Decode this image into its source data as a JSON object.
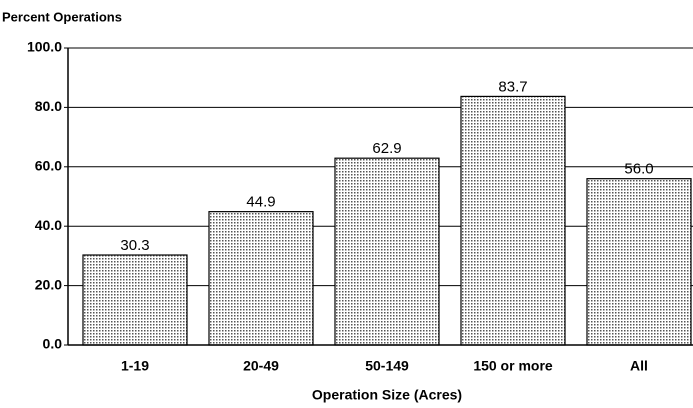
{
  "chart_data": {
    "type": "bar",
    "y_label": "Percent Operations",
    "x_label": "Operation Size (Acres)",
    "categories": [
      "1-19",
      "20-49",
      "50-149",
      "150 or more",
      "All"
    ],
    "values": [
      30.3,
      44.9,
      62.9,
      83.7,
      56.0
    ],
    "value_labels": [
      "30.3",
      "44.9",
      "62.9",
      "83.7",
      "56.0"
    ],
    "color": "#c8c8c8",
    "ylim": [
      0,
      100
    ],
    "yticks": [
      {
        "value": 0,
        "label": "0.0"
      },
      {
        "value": 20,
        "label": "20.0"
      },
      {
        "value": 40,
        "label": "40.0"
      },
      {
        "value": 60,
        "label": "60.0"
      },
      {
        "value": 80,
        "label": "80.0"
      },
      {
        "value": 100,
        "label": "100.0"
      }
    ],
    "grid": true
  }
}
